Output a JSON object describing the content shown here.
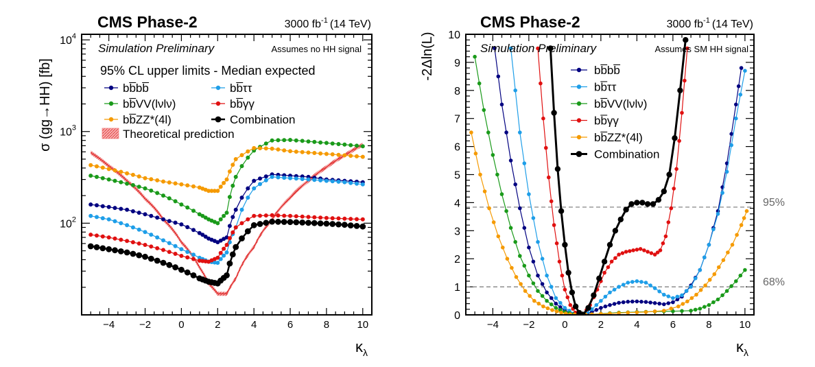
{
  "chart_data": [
    {
      "type": "line",
      "experiment": "CMS Phase-2",
      "luminosity": "3000 fb",
      "luminosity_sup": "-1",
      "energy": "(14 TeV)",
      "status": "Simulation Preliminary",
      "note": "Assumes no HH signal",
      "legend_title": "95% CL upper limits - Median expected",
      "ylabel": "σ (gg→HH) [fb]",
      "xlabel": "κ",
      "xlabel_sub": "λ",
      "xlim": [
        -5.5,
        10.5
      ],
      "ylim": [
        10,
        11500
      ],
      "yscale": "log",
      "xticks": [
        "−4",
        "−2",
        "0",
        "2",
        "4",
        "6",
        "8",
        "10"
      ],
      "yticks": [
        {
          "base": "10",
          "exp": "2",
          "value": 100
        },
        {
          "base": "10",
          "exp": "3",
          "value": 1000
        },
        {
          "base": "10",
          "exp": "4",
          "value": 10000
        }
      ],
      "x": [
        -5,
        -4,
        -3,
        -2,
        -1,
        0,
        1,
        1.5,
        2,
        2.5,
        3,
        4,
        5,
        6,
        7,
        8,
        9,
        10
      ],
      "series": [
        {
          "name": "bb̅bb̅",
          "color": "#000080",
          "values": [
            160,
            150,
            140,
            125,
            110,
            97,
            78,
            68,
            62,
            70,
            140,
            290,
            340,
            330,
            320,
            300,
            290,
            280
          ]
        },
        {
          "name": "bb̅ττ",
          "color": "#1e9ee8",
          "values": [
            120,
            110,
            95,
            80,
            65,
            52,
            42,
            38,
            37,
            48,
            90,
            240,
            320,
            310,
            300,
            290,
            280,
            265
          ]
        },
        {
          "name": "bb̅VV(lνlν)",
          "color": "#1a9a1a",
          "values": [
            330,
            300,
            270,
            240,
            200,
            160,
            125,
            110,
            100,
            130,
            320,
            620,
            800,
            810,
            780,
            750,
            720,
            690
          ]
        },
        {
          "name": "bb̅γγ",
          "color": "#e01010",
          "values": [
            75,
            70,
            64,
            58,
            51,
            44,
            39,
            38,
            42,
            58,
            90,
            120,
            122,
            120,
            117,
            114,
            112,
            110
          ]
        },
        {
          "name": "bb̅ZZ*(4l)",
          "color": "#f59a00",
          "values": [
            430,
            390,
            350,
            310,
            285,
            265,
            245,
            225,
            225,
            300,
            500,
            660,
            650,
            610,
            590,
            570,
            550,
            530
          ]
        },
        {
          "name": "Combination",
          "color": "#000000",
          "values": [
            56,
            52,
            48,
            43,
            37,
            31,
            25,
            23,
            22,
            27,
            55,
            95,
            104,
            103,
            101,
            99,
            96,
            92
          ]
        }
      ],
      "theory": {
        "name": "Theoretical prediction",
        "color": "#e03030",
        "x": [
          -5,
          -4,
          -3,
          -2,
          -1,
          0,
          1,
          1.5,
          2,
          2.5,
          3,
          4,
          5,
          6,
          7,
          8,
          9,
          10
        ],
        "values": [
          590,
          420,
          290,
          185,
          110,
          62,
          33,
          22,
          17,
          17,
          25,
          55,
          110,
          190,
          290,
          410,
          550,
          720
        ]
      }
    },
    {
      "type": "line",
      "experiment": "CMS Phase-2",
      "luminosity": "3000 fb",
      "luminosity_sup": "-1",
      "energy": "(14 TeV)",
      "status": "Simulation Preliminary",
      "note": "Assumes SM HH signal",
      "ylabel": "-2Δln(L)",
      "xlabel": "κ",
      "xlabel_sub": "λ",
      "xlim": [
        -5.5,
        10.5
      ],
      "ylim": [
        0,
        10
      ],
      "yscale": "linear",
      "xticks": [
        "−4",
        "−2",
        "0",
        "2",
        "4",
        "6",
        "8",
        "10"
      ],
      "yticks": [
        "0",
        "1",
        "2",
        "3",
        "4",
        "5",
        "6",
        "7",
        "8",
        "9",
        "10"
      ],
      "reference_lines": [
        {
          "value": 1,
          "label": "68%"
        },
        {
          "value": 3.84,
          "label": "95%"
        }
      ],
      "series": [
        {
          "name": "bb̅bb̅",
          "color": "#000080",
          "x": [
            -3.9,
            -3.5,
            -3,
            -2.5,
            -2,
            -1.5,
            -1,
            -0.5,
            0,
            0.5,
            1,
            1.5,
            2,
            2.5,
            3,
            3.5,
            4,
            4.5,
            5,
            5.5,
            6,
            6.5,
            7,
            7.5,
            8,
            8.5,
            9,
            9.5,
            9.8
          ],
          "values": [
            9.5,
            7.5,
            5.5,
            3.8,
            2.4,
            1.4,
            0.8,
            0.4,
            0.15,
            0.05,
            0,
            0.1,
            0.25,
            0.35,
            0.43,
            0.47,
            0.48,
            0.46,
            0.42,
            0.38,
            0.45,
            0.65,
            1.05,
            1.6,
            2.5,
            3.7,
            5.4,
            7.5,
            8.8
          ]
        },
        {
          "name": "bb̅ττ",
          "color": "#1e9ee8",
          "x": [
            -3,
            -2.5,
            -2,
            -1.5,
            -1,
            -0.5,
            0,
            0.5,
            1,
            1.5,
            2,
            2.5,
            3,
            3.5,
            4,
            4.5,
            5,
            5.5,
            6,
            6.5,
            7,
            7.5,
            8,
            8.5,
            9,
            9.5,
            10
          ],
          "values": [
            9.5,
            6.5,
            4.3,
            2.6,
            1.4,
            0.6,
            0.25,
            0.05,
            0,
            0.2,
            0.5,
            0.8,
            1.0,
            1.15,
            1.2,
            1.15,
            0.95,
            0.72,
            0.6,
            0.7,
            1.0,
            1.6,
            2.5,
            3.6,
            5.1,
            7.0,
            8.7
          ]
        },
        {
          "name": "bb̅VV(lνlν)",
          "color": "#1a9a1a",
          "x": [
            -5,
            -4.5,
            -4,
            -3.5,
            -3,
            -2.5,
            -2,
            -1.5,
            -1,
            -0.5,
            0,
            0.5,
            1,
            2,
            3,
            4,
            5,
            6,
            7,
            7.5,
            8,
            8.5,
            9,
            9.5,
            10
          ],
          "values": [
            9.2,
            7.3,
            5.7,
            4.3,
            3.1,
            2.1,
            1.4,
            0.85,
            0.5,
            0.25,
            0.1,
            0.03,
            0,
            0.04,
            0.08,
            0.1,
            0.12,
            0.13,
            0.15,
            0.22,
            0.35,
            0.55,
            0.85,
            1.2,
            1.6
          ]
        },
        {
          "name": "bb̅γγ",
          "color": "#e01010",
          "x": [
            -1.5,
            -1.2,
            -0.9,
            -0.6,
            -0.3,
            0,
            0.3,
            0.6,
            1,
            1.4,
            1.8,
            2.2,
            2.6,
            3,
            3.4,
            3.8,
            4.2,
            4.6,
            5,
            5.3,
            5.6,
            5.9,
            6.2,
            6.5,
            6.8
          ],
          "values": [
            9.5,
            7.0,
            4.9,
            3.2,
            1.9,
            0.9,
            0.35,
            0.08,
            0,
            0.35,
            0.9,
            1.5,
            1.9,
            2.15,
            2.25,
            2.3,
            2.35,
            2.25,
            2.15,
            2.3,
            2.8,
            3.8,
            5.2,
            7.2,
            9.5
          ]
        },
        {
          "name": "bb̅ZZ*(4l)",
          "color": "#f59a00",
          "x": [
            -5.2,
            -4.7,
            -4.2,
            -3.7,
            -3.2,
            -2.7,
            -2.2,
            -1.7,
            -1.2,
            -0.7,
            -0.2,
            0.3,
            0.8,
            1.5,
            2.5,
            3.5,
            4.5,
            5.5,
            6.3,
            6.8,
            7.3,
            7.8,
            8.3,
            8.8,
            9.3,
            9.8,
            10.1
          ],
          "values": [
            6.5,
            5.0,
            3.8,
            2.8,
            2.0,
            1.35,
            0.85,
            0.5,
            0.3,
            0.17,
            0.08,
            0.02,
            0,
            0.02,
            0.05,
            0.08,
            0.1,
            0.15,
            0.3,
            0.48,
            0.72,
            1.05,
            1.45,
            1.95,
            2.5,
            3.2,
            3.7
          ]
        },
        {
          "name": "Combination",
          "color": "#000000",
          "x": [
            -0.8,
            -0.6,
            -0.4,
            -0.2,
            0,
            0.2,
            0.4,
            0.6,
            0.8,
            1,
            1.3,
            1.6,
            1.9,
            2.2,
            2.5,
            2.8,
            3.1,
            3.4,
            3.7,
            4,
            4.3,
            4.6,
            4.9,
            5.2,
            5.5,
            5.8,
            6.1,
            6.4,
            6.7
          ],
          "values": [
            9.5,
            7.2,
            5.2,
            3.7,
            2.5,
            1.5,
            0.8,
            0.3,
            0.07,
            0,
            0.25,
            0.7,
            1.3,
            1.9,
            2.5,
            3.0,
            3.4,
            3.75,
            3.95,
            4.0,
            4.0,
            3.95,
            3.95,
            4.1,
            4.4,
            5.0,
            6.3,
            8.0,
            9.8
          ]
        }
      ]
    }
  ]
}
